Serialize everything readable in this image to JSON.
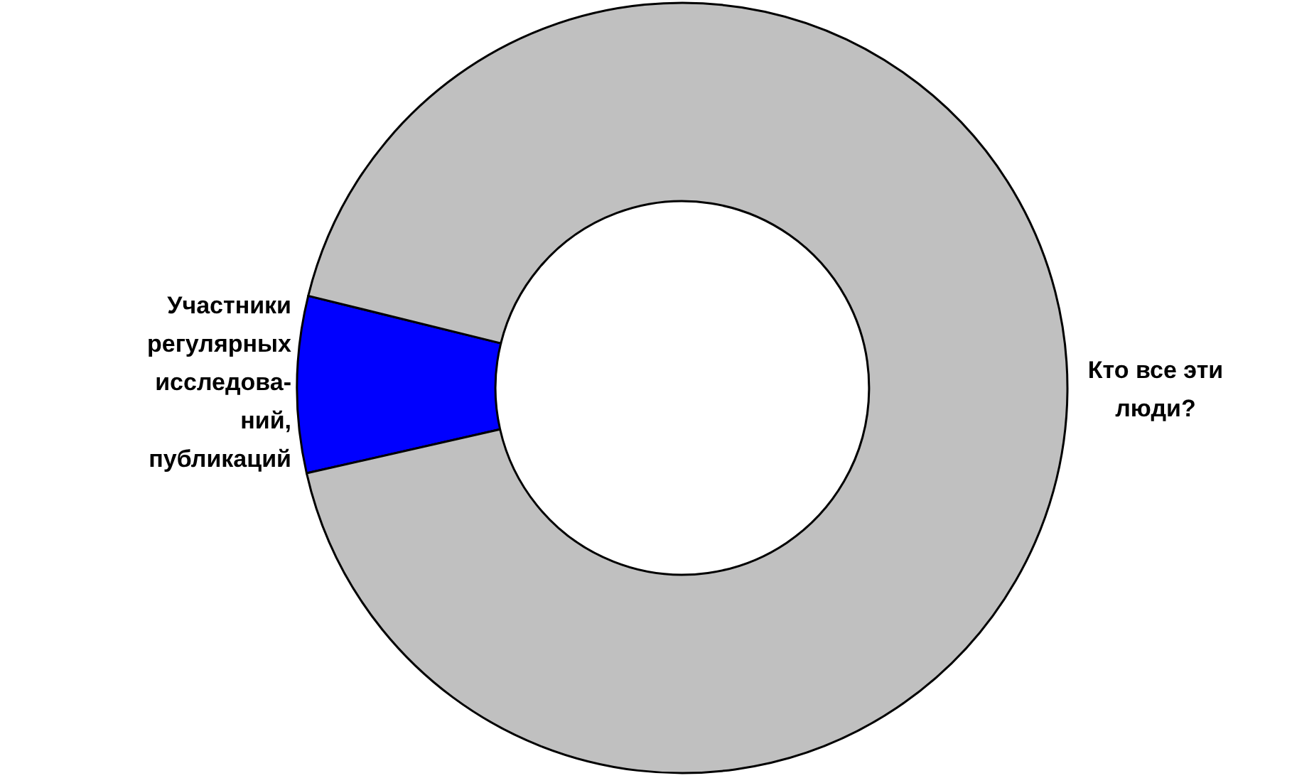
{
  "chart_data": {
    "type": "donut",
    "categories": [
      "Участники\nрегулярных\nисследова-\nний,\nпубликаций",
      "Кто все эти\nлюди?"
    ],
    "values": [
      7.4,
      92.6
    ],
    "colors": [
      "#0000ff",
      "#c0c0c0"
    ]
  }
}
